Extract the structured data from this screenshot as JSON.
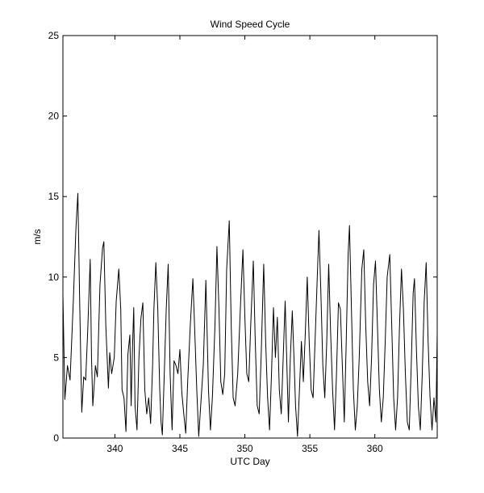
{
  "chart_data": {
    "type": "line",
    "title": "Wind Speed Cycle",
    "xlabel": "UTC Day",
    "ylabel": "m/s",
    "xlim": [
      336,
      364.8
    ],
    "ylim": [
      0,
      25
    ],
    "grid": false,
    "x_ticks": [
      340,
      345,
      350,
      355,
      360
    ],
    "y_ticks": [
      0,
      5,
      10,
      15,
      20,
      25
    ],
    "series": [
      {
        "color": "#000000",
        "points": [
          [
            336.0,
            8.9
          ],
          [
            336.15,
            2.4
          ],
          [
            336.35,
            4.5
          ],
          [
            336.55,
            3.6
          ],
          [
            336.8,
            8.5
          ],
          [
            337.0,
            13.0
          ],
          [
            337.15,
            15.2
          ],
          [
            337.3,
            8.0
          ],
          [
            337.45,
            1.6
          ],
          [
            337.6,
            3.8
          ],
          [
            337.75,
            3.6
          ],
          [
            337.9,
            6.5
          ],
          [
            338.1,
            11.1
          ],
          [
            338.2,
            5.0
          ],
          [
            338.3,
            2.0
          ],
          [
            338.5,
            4.5
          ],
          [
            338.65,
            3.8
          ],
          [
            338.85,
            9.5
          ],
          [
            339.05,
            11.8
          ],
          [
            339.15,
            12.2
          ],
          [
            339.3,
            7.0
          ],
          [
            339.5,
            3.1
          ],
          [
            339.6,
            5.3
          ],
          [
            339.75,
            4.0
          ],
          [
            339.95,
            5.0
          ],
          [
            340.1,
            8.5
          ],
          [
            340.3,
            10.5
          ],
          [
            340.45,
            8.0
          ],
          [
            340.55,
            3.0
          ],
          [
            340.7,
            2.5
          ],
          [
            340.85,
            0.4
          ],
          [
            341.0,
            5.2
          ],
          [
            341.15,
            6.4
          ],
          [
            341.25,
            2.0
          ],
          [
            341.35,
            5.5
          ],
          [
            341.45,
            8.1
          ],
          [
            341.55,
            2.0
          ],
          [
            341.7,
            0.5
          ],
          [
            341.85,
            5.0
          ],
          [
            342.0,
            7.4
          ],
          [
            342.15,
            8.4
          ],
          [
            342.3,
            3.0
          ],
          [
            342.45,
            1.5
          ],
          [
            342.6,
            2.5
          ],
          [
            342.75,
            0.9
          ],
          [
            342.9,
            4.5
          ],
          [
            343.0,
            8.0
          ],
          [
            343.15,
            10.9
          ],
          [
            343.3,
            8.0
          ],
          [
            343.45,
            3.0
          ],
          [
            343.55,
            1.0
          ],
          [
            343.65,
            0.2
          ],
          [
            343.8,
            4.0
          ],
          [
            343.95,
            8.0
          ],
          [
            344.1,
            10.8
          ],
          [
            344.25,
            4.0
          ],
          [
            344.4,
            0.5
          ],
          [
            344.55,
            4.8
          ],
          [
            344.7,
            4.5
          ],
          [
            344.85,
            4.0
          ],
          [
            345.0,
            5.5
          ],
          [
            345.15,
            2.8
          ],
          [
            345.3,
            1.5
          ],
          [
            345.45,
            0.3
          ],
          [
            345.6,
            3.5
          ],
          [
            345.8,
            7.0
          ],
          [
            346.0,
            9.9
          ],
          [
            346.15,
            6.5
          ],
          [
            346.3,
            3.0
          ],
          [
            346.45,
            0.1
          ],
          [
            346.6,
            2.0
          ],
          [
            346.8,
            4.5
          ],
          [
            347.0,
            9.8
          ],
          [
            347.2,
            3.0
          ],
          [
            347.35,
            0.5
          ],
          [
            347.5,
            2.5
          ],
          [
            347.7,
            7.0
          ],
          [
            347.85,
            11.9
          ],
          [
            348.0,
            8.2
          ],
          [
            348.15,
            3.5
          ],
          [
            348.3,
            2.7
          ],
          [
            348.45,
            4.0
          ],
          [
            348.6,
            10.5
          ],
          [
            348.8,
            13.5
          ],
          [
            348.95,
            7.0
          ],
          [
            349.1,
            2.5
          ],
          [
            349.25,
            2.0
          ],
          [
            349.45,
            4.0
          ],
          [
            349.65,
            8.0
          ],
          [
            349.85,
            11.7
          ],
          [
            350.0,
            7.5
          ],
          [
            350.15,
            4.0
          ],
          [
            350.3,
            3.5
          ],
          [
            350.45,
            7.0
          ],
          [
            350.65,
            11.0
          ],
          [
            350.8,
            6.0
          ],
          [
            350.95,
            2.0
          ],
          [
            351.1,
            1.5
          ],
          [
            351.25,
            5.0
          ],
          [
            351.45,
            10.8
          ],
          [
            351.6,
            6.0
          ],
          [
            351.75,
            2.5
          ],
          [
            351.9,
            0.5
          ],
          [
            352.05,
            4.0
          ],
          [
            352.2,
            8.1
          ],
          [
            352.35,
            5.0
          ],
          [
            352.5,
            7.5
          ],
          [
            352.65,
            3.0
          ],
          [
            352.8,
            1.5
          ],
          [
            352.95,
            5.0
          ],
          [
            353.1,
            8.5
          ],
          [
            353.25,
            4.0
          ],
          [
            353.35,
            1.0
          ],
          [
            353.5,
            5.0
          ],
          [
            353.65,
            7.9
          ],
          [
            353.8,
            4.5
          ],
          [
            353.9,
            2.0
          ],
          [
            354.05,
            0.1
          ],
          [
            354.2,
            3.0
          ],
          [
            354.35,
            6.0
          ],
          [
            354.5,
            3.5
          ],
          [
            354.65,
            6.5
          ],
          [
            354.8,
            10.0
          ],
          [
            354.95,
            6.0
          ],
          [
            355.1,
            3.0
          ],
          [
            355.25,
            2.5
          ],
          [
            355.4,
            6.0
          ],
          [
            355.55,
            9.5
          ],
          [
            355.7,
            12.9
          ],
          [
            355.85,
            9.0
          ],
          [
            356.0,
            4.5
          ],
          [
            356.15,
            2.5
          ],
          [
            356.3,
            6.0
          ],
          [
            356.45,
            10.8
          ],
          [
            356.6,
            6.5
          ],
          [
            356.75,
            3.0
          ],
          [
            356.9,
            0.5
          ],
          [
            357.05,
            4.0
          ],
          [
            357.2,
            8.4
          ],
          [
            357.35,
            8.0
          ],
          [
            357.5,
            4.5
          ],
          [
            357.65,
            1.0
          ],
          [
            357.8,
            6.0
          ],
          [
            357.95,
            11.5
          ],
          [
            358.05,
            13.2
          ],
          [
            358.2,
            8.0
          ],
          [
            358.35,
            3.0
          ],
          [
            358.5,
            0.5
          ],
          [
            358.65,
            2.0
          ],
          [
            358.8,
            5.0
          ],
          [
            359.0,
            10.5
          ],
          [
            359.15,
            11.7
          ],
          [
            359.3,
            7.0
          ],
          [
            359.45,
            3.5
          ],
          [
            359.6,
            2.0
          ],
          [
            359.75,
            5.0
          ],
          [
            359.9,
            9.5
          ],
          [
            360.05,
            11.0
          ],
          [
            360.2,
            7.0
          ],
          [
            360.35,
            3.0
          ],
          [
            360.5,
            1.0
          ],
          [
            360.65,
            2.5
          ],
          [
            360.8,
            6.0
          ],
          [
            360.95,
            10.0
          ],
          [
            361.15,
            11.4
          ],
          [
            361.3,
            7.0
          ],
          [
            361.45,
            2.5
          ],
          [
            361.6,
            0.5
          ],
          [
            361.75,
            2.5
          ],
          [
            361.9,
            7.0
          ],
          [
            362.05,
            10.5
          ],
          [
            362.2,
            8.0
          ],
          [
            362.35,
            4.0
          ],
          [
            362.5,
            1.0
          ],
          [
            362.65,
            0.5
          ],
          [
            362.8,
            4.5
          ],
          [
            362.95,
            9.0
          ],
          [
            363.05,
            9.9
          ],
          [
            363.2,
            5.5
          ],
          [
            363.35,
            2.0
          ],
          [
            363.5,
            0.5
          ],
          [
            363.65,
            4.0
          ],
          [
            363.8,
            8.5
          ],
          [
            363.95,
            10.9
          ],
          [
            364.1,
            6.0
          ],
          [
            364.25,
            2.5
          ],
          [
            364.4,
            0.5
          ],
          [
            364.55,
            2.5
          ],
          [
            364.7,
            1.0
          ],
          [
            364.8,
            6.5
          ]
        ]
      }
    ]
  }
}
